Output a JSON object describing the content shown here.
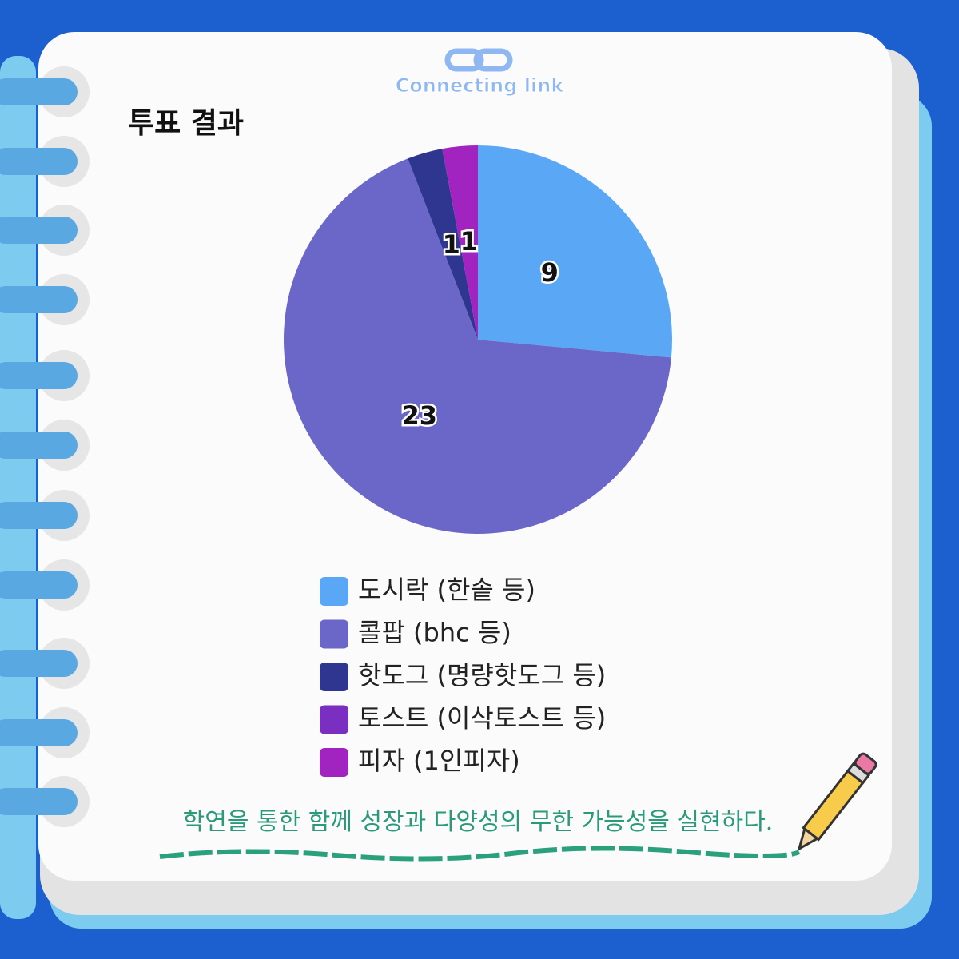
{
  "brand": "Connecting link",
  "slogan": "학연을 통한 함께 성장과 다양성의 무한 가능성을 실현하다.",
  "chart_data": {
    "type": "pie",
    "title": "투표 결과",
    "categories": [
      "도시락 (한솥 등)",
      "콜팝 (bhc 등)",
      "핫도그 (명량핫도그 등)",
      "토스트 (이삭토스트 등)",
      "피자 (1인피자)"
    ],
    "values": [
      9,
      23,
      1,
      0,
      1
    ],
    "colors": [
      "#5aa8f5",
      "#6a67c9",
      "#2e3690",
      "#7a2fc0",
      "#a224c0"
    ]
  }
}
